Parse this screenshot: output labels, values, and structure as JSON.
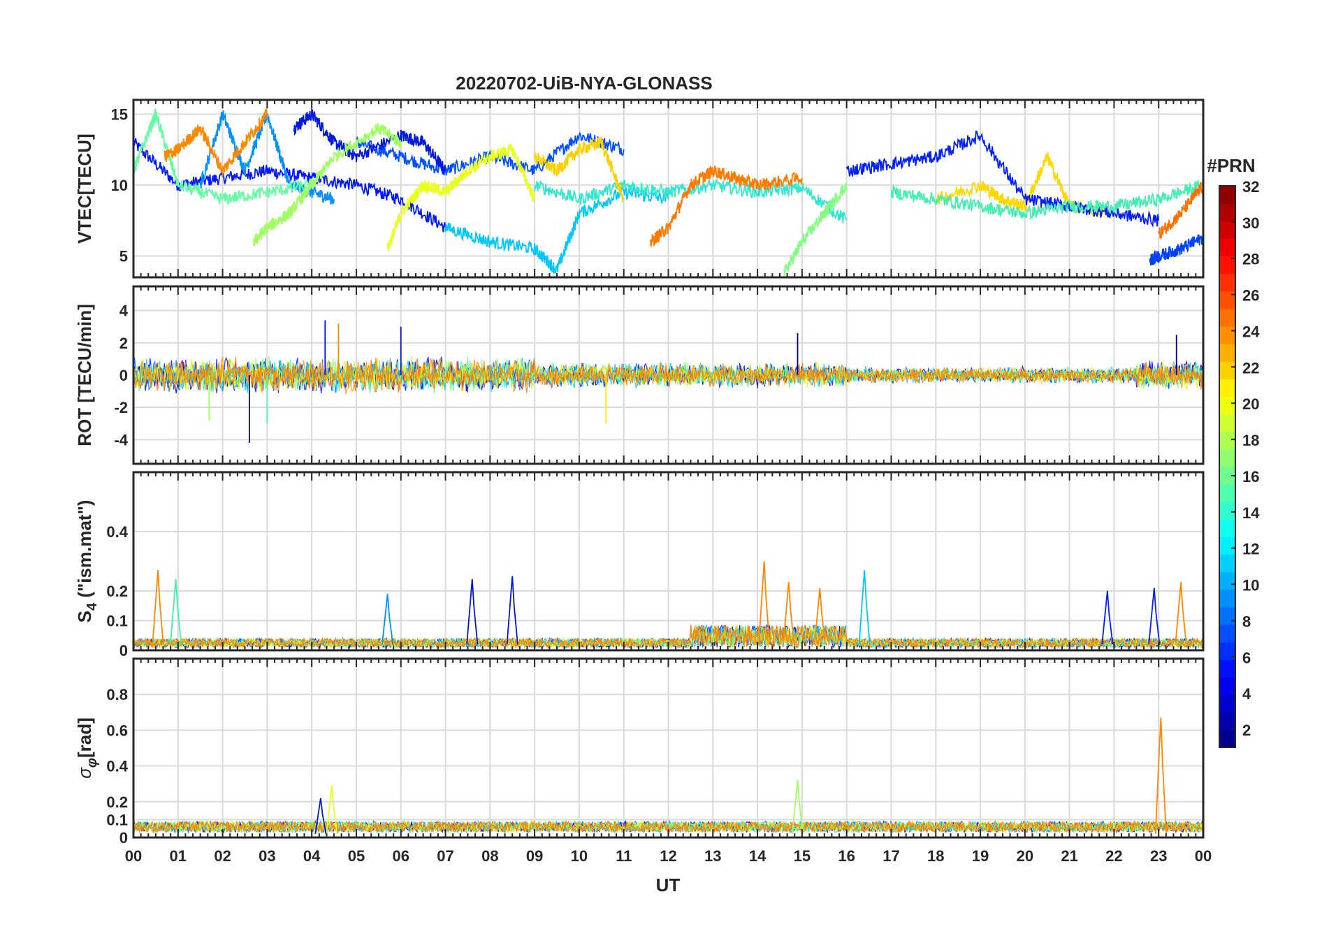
{
  "figure": {
    "title": "20220702-UiB-NYA-GLONASS",
    "xlabel": "UT",
    "colorbar_title": "#PRN",
    "colorbar_ticks": [
      "2",
      "4",
      "6",
      "8",
      "10",
      "12",
      "14",
      "16",
      "18",
      "20",
      "22",
      "24",
      "26",
      "28",
      "30",
      "32"
    ],
    "x_ticks": [
      "00",
      "01",
      "02",
      "03",
      "04",
      "05",
      "06",
      "07",
      "08",
      "09",
      "10",
      "11",
      "12",
      "13",
      "14",
      "15",
      "16",
      "17",
      "18",
      "19",
      "20",
      "21",
      "22",
      "23",
      "00"
    ]
  },
  "colors": {
    "grid": "#d9d9d9",
    "axis": "#262626",
    "prn_colormap": "jet",
    "prn_traces": [
      "#00008f",
      "#0010ff",
      "#0070ff",
      "#00cfff",
      "#3fffbf",
      "#9fff5f",
      "#ffef00",
      "#ff8f00",
      "#ff7a00"
    ]
  },
  "chart_data": [
    {
      "type": "line",
      "panel": "vtec",
      "ylabel": "VTEC[TECU]",
      "ylim": [
        3.5,
        16
      ],
      "y_ticks": [
        "5",
        "10",
        "15"
      ],
      "xlim": [
        0,
        24
      ],
      "grid": true,
      "series": [
        {
          "prn": 2,
          "color": "#0018ff",
          "x": [
            0,
            1,
            2,
            3,
            4,
            5,
            6,
            7
          ],
          "values": [
            13,
            10,
            10.5,
            11,
            10.5,
            10,
            9,
            7
          ]
        },
        {
          "prn": 4,
          "color": "#0050ff",
          "x": [
            5,
            6,
            7,
            8,
            9,
            10,
            11
          ],
          "values": [
            13,
            12,
            11,
            12,
            11,
            13.5,
            12.5
          ]
        },
        {
          "prn": 6,
          "color": "#0018e0",
          "x": [
            3.6,
            4,
            4.5,
            5,
            6,
            6.5,
            7
          ],
          "values": [
            14,
            15,
            13,
            12,
            13.5,
            13,
            11
          ]
        },
        {
          "prn": 8,
          "color": "#0090ff",
          "x": [
            1.5,
            2,
            2.5,
            3,
            3.5,
            4,
            4.5
          ],
          "values": [
            10,
            15,
            11,
            15,
            10,
            9.5,
            9
          ]
        },
        {
          "prn": 10,
          "color": "#00c8ff",
          "x": [
            7,
            8,
            9,
            9.5,
            10,
            11,
            12
          ],
          "values": [
            7,
            6,
            5.5,
            4,
            8,
            9.5,
            9
          ]
        },
        {
          "prn": 12,
          "color": "#30e8d0",
          "x": [
            9,
            10,
            11,
            12,
            13,
            14,
            15,
            16
          ],
          "values": [
            10,
            9,
            10,
            9.5,
            10,
            9.5,
            9.8,
            7.5
          ]
        },
        {
          "prn": 14,
          "color": "#60ffa0",
          "x": [
            0,
            0.5,
            1,
            2,
            3,
            4
          ],
          "values": [
            11,
            15,
            10,
            9,
            9.5,
            10
          ]
        },
        {
          "prn": 16,
          "color": "#a0ff60",
          "x": [
            2.7,
            3,
            3.5,
            4,
            4.5,
            5.5,
            6
          ],
          "values": [
            6,
            7,
            8,
            10,
            12,
            14,
            13
          ]
        },
        {
          "prn": 18,
          "color": "#e8ff20",
          "x": [
            5.7,
            6,
            6.5,
            7,
            7.5,
            8,
            8.5,
            9
          ],
          "values": [
            5.5,
            8,
            10,
            9.5,
            11,
            12,
            12.5,
            9
          ]
        },
        {
          "prn": 22,
          "color": "#ffd000",
          "x": [
            9,
            9.5,
            10,
            10.5,
            11
          ],
          "values": [
            12,
            11,
            12.5,
            13,
            9
          ]
        },
        {
          "prn": 24,
          "color": "#ff8800",
          "x": [
            0.7,
            1,
            1.5,
            2,
            2.5,
            3
          ],
          "values": [
            12,
            12.5,
            14,
            11,
            13,
            15
          ]
        },
        {
          "prn": 24,
          "color": "#ff7a00",
          "x": [
            11.6,
            12,
            12.5,
            13,
            13.5,
            14,
            15
          ],
          "values": [
            6,
            7,
            10,
            11,
            10.5,
            10,
            10.5
          ]
        },
        {
          "prn": 20,
          "color": "#ffd800",
          "x": [
            18,
            19,
            19.5,
            20,
            20.5,
            21,
            22
          ],
          "values": [
            9,
            10,
            9,
            8.5,
            12,
            8.5,
            8
          ]
        },
        {
          "prn": 4,
          "color": "#0020ff",
          "x": [
            16,
            17,
            18,
            19,
            20,
            21,
            22,
            23
          ],
          "values": [
            11,
            11.5,
            12,
            13.5,
            9,
            8.5,
            8,
            7.5
          ]
        },
        {
          "prn": 14,
          "color": "#40f0b0",
          "x": [
            17,
            18,
            19,
            20,
            21,
            22,
            23,
            24
          ],
          "values": [
            9.5,
            9,
            8.5,
            8,
            8.5,
            8.5,
            9,
            10
          ]
        },
        {
          "prn": 6,
          "color": "#0040ff",
          "x": [
            22.8,
            23,
            23.5,
            24
          ],
          "values": [
            4.7,
            5,
            5.5,
            6.3
          ]
        },
        {
          "prn": 24,
          "color": "#ff7000",
          "x": [
            23,
            23.5,
            24
          ],
          "values": [
            6.5,
            8,
            10
          ]
        },
        {
          "prn": 16,
          "color": "#80ff80",
          "x": [
            14.6,
            15,
            15.5,
            16
          ],
          "values": [
            3.8,
            6,
            8,
            10
          ]
        }
      ]
    },
    {
      "type": "line",
      "panel": "rot",
      "ylabel": "ROT [TECU/min]",
      "ylim": [
        -5.5,
        5.5
      ],
      "y_ticks": [
        "-4",
        "-2",
        "0",
        "2",
        "4"
      ],
      "xlim": [
        0,
        24
      ],
      "grid": true,
      "noise_amplitude": 0.8,
      "spikes": [
        {
          "x": 2.6,
          "y": -4.2
        },
        {
          "x": 4.3,
          "y": 3.4
        },
        {
          "x": 4.6,
          "y": 3.2
        },
        {
          "x": 6.0,
          "y": 3.0
        },
        {
          "x": 10.6,
          "y": -3.0
        },
        {
          "x": 3.0,
          "y": -3.0
        },
        {
          "x": 1.7,
          "y": -2.8
        },
        {
          "x": 14.9,
          "y": 2.6
        },
        {
          "x": 23.4,
          "y": 2.5
        }
      ]
    },
    {
      "type": "line",
      "panel": "s4",
      "ylabel": "S4 (\"ism.mat\")",
      "ylabel_main": "S",
      "ylabel_sub": "4",
      "ylabel_rest": " (\"ism.mat\")",
      "ylim": [
        0,
        0.6
      ],
      "y_ticks": [
        "0",
        "0.1",
        "0.2",
        "0.4"
      ],
      "xlim": [
        0,
        24
      ],
      "grid": true,
      "peaks": [
        {
          "x": 0.55,
          "y": 0.27,
          "color": "#ff8800"
        },
        {
          "x": 0.95,
          "y": 0.24,
          "color": "#40f0b0"
        },
        {
          "x": 5.7,
          "y": 0.19,
          "color": "#0090ff"
        },
        {
          "x": 7.6,
          "y": 0.24,
          "color": "#0018d0"
        },
        {
          "x": 8.5,
          "y": 0.25,
          "color": "#0018d0"
        },
        {
          "x": 14.15,
          "y": 0.3,
          "color": "#ff8800"
        },
        {
          "x": 14.7,
          "y": 0.23,
          "color": "#ff8800"
        },
        {
          "x": 15.4,
          "y": 0.21,
          "color": "#ff8800"
        },
        {
          "x": 16.4,
          "y": 0.27,
          "color": "#00c8ff"
        },
        {
          "x": 21.85,
          "y": 0.2,
          "color": "#0020ff"
        },
        {
          "x": 22.9,
          "y": 0.21,
          "color": "#0020ff"
        },
        {
          "x": 23.5,
          "y": 0.23,
          "color": "#ff8800"
        }
      ]
    },
    {
      "type": "line",
      "panel": "sigma_phi",
      "ylabel": "σφ[rad]",
      "ylabel_main": "σ",
      "ylabel_sub": "φ",
      "ylabel_rest": "[rad]",
      "ylim": [
        0,
        1.0
      ],
      "y_ticks": [
        "0",
        "0.1",
        "0.2",
        "0.4",
        "0.6",
        "0.8"
      ],
      "xlim": [
        0,
        24
      ],
      "grid": true,
      "peaks": [
        {
          "x": 23.05,
          "y": 0.67,
          "color": "#ff8800"
        },
        {
          "x": 4.45,
          "y": 0.29,
          "color": "#e8ff20"
        },
        {
          "x": 14.9,
          "y": 0.32,
          "color": "#a0ff60"
        },
        {
          "x": 4.2,
          "y": 0.22,
          "color": "#0018d0"
        }
      ]
    }
  ]
}
